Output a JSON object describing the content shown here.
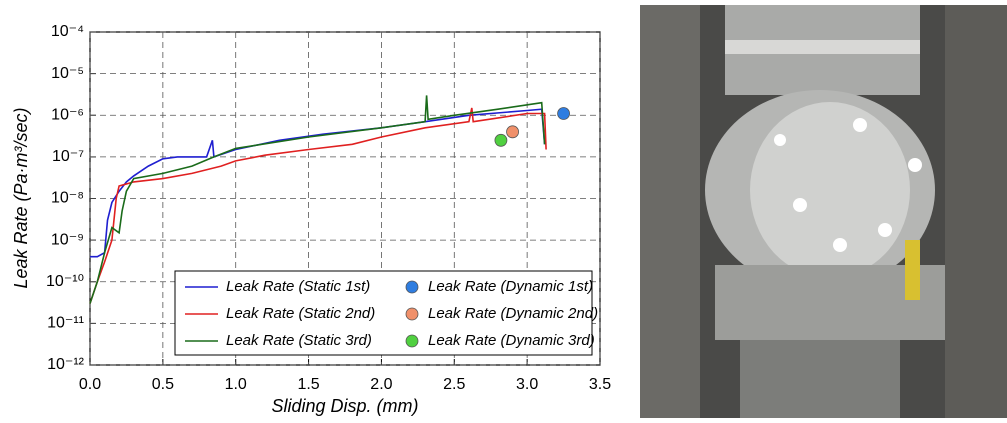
{
  "chart_data": {
    "type": "line",
    "xlabel": "Sliding Disp. (mm)",
    "ylabel": "Leak Rate (Pa·m³/sec)",
    "xlim": [
      0,
      3.5
    ],
    "ylim": [
      1e-12,
      0.0001
    ],
    "log_y": true,
    "grid": true,
    "legend": "lower right",
    "xticks": [
      {
        "value": 0,
        "label": "0.0"
      },
      0.5,
      {
        "value": 1,
        "label": "1.0"
      },
      1.5,
      {
        "value": 2,
        "label": "2.0"
      },
      2.5,
      {
        "value": 3,
        "label": "3.0"
      },
      3.5
    ],
    "yticks": [
      {
        "value": 1e-12,
        "label": "10⁻¹²"
      },
      {
        "value": 1e-11,
        "label": "10⁻¹¹"
      },
      {
        "value": 1e-10,
        "label": "10⁻¹⁰"
      },
      {
        "value": 1e-09,
        "label": "10⁻⁹"
      },
      {
        "value": 1e-08,
        "label": "10⁻⁸"
      },
      {
        "value": 1e-07,
        "label": "10⁻⁷"
      },
      {
        "value": 1e-06,
        "label": "10⁻⁶"
      },
      {
        "value": 1e-05,
        "label": "10⁻⁵"
      },
      {
        "value": 0.0001,
        "label": "10⁻⁴"
      }
    ],
    "series": [
      {
        "name": "Leak Rate (Static 1st)",
        "type": "line",
        "color": "#1f1fd0",
        "x": [
          0,
          0.05,
          0.1,
          0.12,
          0.15,
          0.2,
          0.25,
          0.3,
          0.4,
          0.5,
          0.6,
          0.8,
          0.84,
          0.85,
          1.0,
          1.3,
          1.6,
          2.0,
          2.3,
          2.6,
          3.0,
          3.1,
          3.12
        ],
        "values": [
          4e-10,
          4e-10,
          5e-10,
          3e-09,
          8e-09,
          1.5e-08,
          2.5e-08,
          3.5e-08,
          6e-08,
          9e-08,
          1e-07,
          1e-07,
          2.5e-07,
          1e-07,
          1.5e-07,
          2.5e-07,
          3.5e-07,
          5e-07,
          7e-07,
          1e-06,
          1.3e-06,
          1.4e-06,
          2e-07
        ]
      },
      {
        "name": "Leak Rate (Static 2nd)",
        "type": "line",
        "color": "#e02020",
        "x": [
          0,
          0.05,
          0.1,
          0.15,
          0.18,
          0.2,
          0.3,
          0.5,
          0.7,
          0.9,
          1.0,
          1.2,
          1.5,
          1.8,
          2.0,
          2.3,
          2.6,
          2.62,
          2.63,
          3.0,
          3.12,
          3.13
        ],
        "values": [
          3e-11,
          1e-10,
          3e-10,
          1e-09,
          1e-08,
          2e-08,
          2.5e-08,
          3e-08,
          4e-08,
          6e-08,
          8e-08,
          1.1e-07,
          1.5e-07,
          2e-07,
          3e-07,
          5e-07,
          7e-07,
          1.5e-06,
          7e-07,
          1.1e-06,
          1.1e-06,
          1.5e-07
        ]
      },
      {
        "name": "Leak Rate (Static 3rd)",
        "type": "line",
        "color": "#1a6b1a",
        "x": [
          0,
          0.05,
          0.1,
          0.15,
          0.2,
          0.22,
          0.25,
          0.3,
          0.5,
          0.7,
          0.85,
          1.0,
          1.5,
          2.0,
          2.3,
          2.31,
          2.32,
          2.5,
          2.8,
          3.1,
          3.12
        ],
        "values": [
          3e-11,
          1e-10,
          5e-10,
          2e-09,
          1.5e-09,
          5e-09,
          1.5e-08,
          3e-08,
          4e-08,
          6e-08,
          1e-07,
          1.6e-07,
          3e-07,
          5e-07,
          7e-07,
          3e-06,
          8e-07,
          1e-06,
          1.4e-06,
          2e-06,
          2e-07
        ]
      },
      {
        "name": "Leak Rate (Dynamic 1st)",
        "type": "scatter",
        "color": "#2f7de0",
        "x": [
          3.25
        ],
        "values": [
          1.1e-06
        ]
      },
      {
        "name": "Leak Rate (Dynamic 2nd)",
        "type": "scatter",
        "color": "#f0906a",
        "x": [
          2.9
        ],
        "values": [
          4e-07
        ]
      },
      {
        "name": "Leak Rate (Dynamic 3rd)",
        "type": "scatter",
        "color": "#50d040",
        "x": [
          2.82
        ],
        "values": [
          2.5e-07
        ]
      }
    ]
  }
}
